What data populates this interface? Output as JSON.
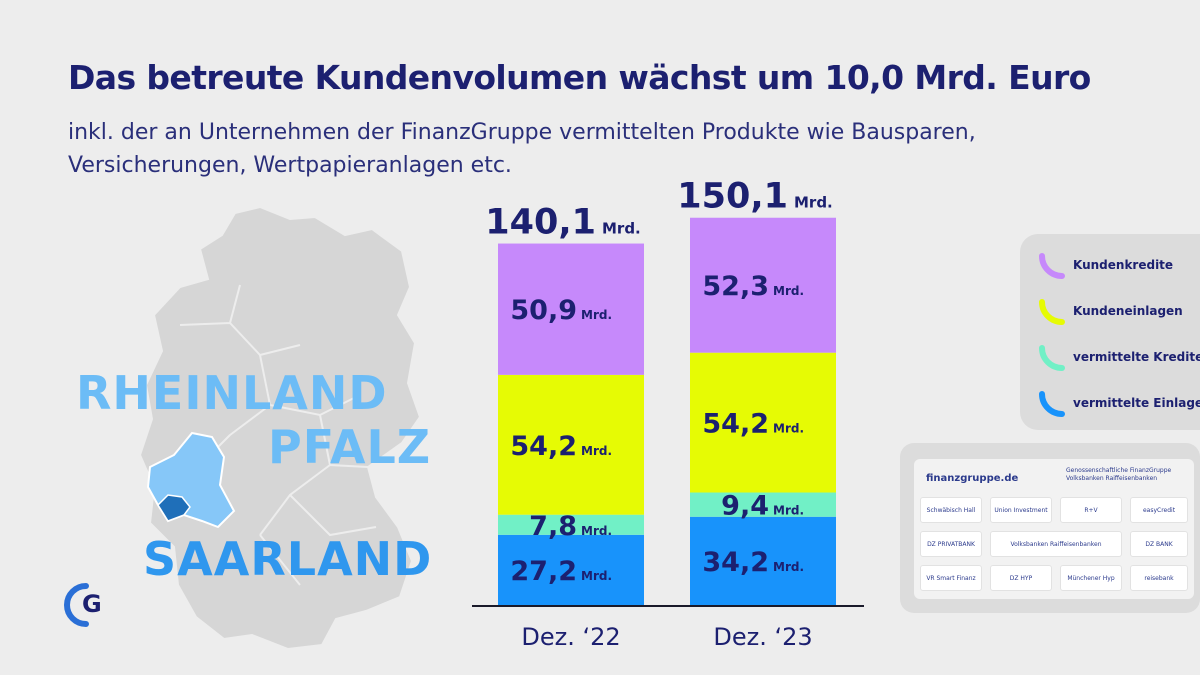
{
  "title": "Das betreute Kundenvolumen wächst um 10,0 Mrd. Euro",
  "subtitle_line1": "inkl. der an Unternehmen der FinanzGruppe vermittelten Produkte wie Bausparen,",
  "subtitle_line2": "Versicherungen, Wertpapieranlagen etc.",
  "regions": {
    "rlp_line1": "RHEINLAND",
    "rlp_line2": "PFALZ",
    "saarland": "SAARLAND"
  },
  "colors": {
    "kundenkredite": "#c689fb",
    "kundeneinlagen": "#e6fb04",
    "vermittelte_kredite": "#71f0c6",
    "vermittelte_einlagen": "#1893fb",
    "text_navy": "#1c2070"
  },
  "chart_data": {
    "type": "bar",
    "stacked": true,
    "categories": [
      "Dez. ‘22",
      "Dez. ‘23"
    ],
    "unit": "Mrd.",
    "totals": [
      {
        "value": "140,1",
        "unit": "Mrd."
      },
      {
        "value": "150,1",
        "unit": "Mrd."
      }
    ],
    "series": [
      {
        "name": "vermittelte Einlagen",
        "values": [
          27.2,
          34.2
        ],
        "labels": [
          "27,2",
          "34,2"
        ],
        "color": "#1893fb"
      },
      {
        "name": "vermittelte Kredite",
        "values": [
          7.8,
          9.4
        ],
        "labels": [
          "7,8",
          "9,4"
        ],
        "color": "#71f0c6"
      },
      {
        "name": "Kundeneinlagen",
        "values": [
          54.2,
          54.2
        ],
        "labels": [
          "54,2",
          "54,2"
        ],
        "color": "#e6fb04"
      },
      {
        "name": "Kundenkredite",
        "values": [
          50.9,
          52.3
        ],
        "labels": [
          "50,9",
          "52,3"
        ],
        "color": "#c689fb"
      }
    ],
    "legend": [
      {
        "label": "Kundenkredite",
        "color": "#c689fb"
      },
      {
        "label": "Kundeneinlagen",
        "color": "#e6fb04"
      },
      {
        "label": "vermittelte Kredite",
        "color": "#71f0c6"
      },
      {
        "label": "vermittelte Einlagen",
        "color": "#1893fb"
      }
    ],
    "legend_position": "right"
  },
  "partners": {
    "header": "finanzgruppe.de",
    "header_right": "Genossenschaftliche FinanzGruppe Volksbanken Raiffeisenbanken",
    "cells": [
      "Schwäbisch Hall",
      "Union Investment",
      "R+V",
      "easyCredit",
      "DZ PRIVATBANK",
      "Volksbanken Raiffeisenbanken",
      "DZ BANK",
      "VR Smart Finanz",
      "DZ HYP",
      "Münchener Hyp",
      "reisebank"
    ]
  }
}
